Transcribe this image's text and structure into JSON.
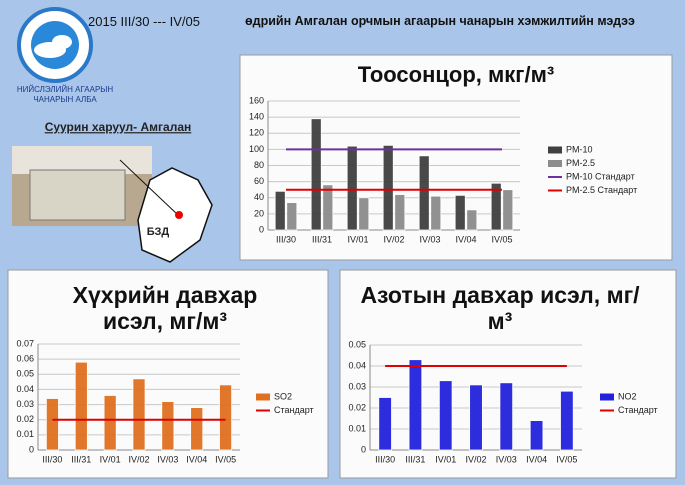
{
  "header": {
    "period": "2015   III/30   ---  IV/05",
    "title": "өдрийн Амгалан орчмын агаарын чанарын хэмжилтийн мэдээ"
  },
  "logo": {
    "line1": "НИЙСЛЭЛИЙН АГААРЫН",
    "line2": "ЧАНАРЫН АЛБА"
  },
  "station": "Суурин харуул- Амгалан",
  "map_label": "БЗД",
  "chart_data": [
    {
      "type": "bar",
      "title": "Тоосонцор, мкг/м³",
      "categories": [
        "III/30",
        "III/31",
        "IV/01",
        "IV/02",
        "IV/03",
        "IV/04",
        "IV/05"
      ],
      "series": [
        {
          "name": "PM-10",
          "color": "#404040",
          "type": "bar",
          "values": [
            48,
            138,
            104,
            105,
            92,
            43,
            58
          ]
        },
        {
          "name": "PM-2.5",
          "color": "#8c8c8c",
          "type": "bar",
          "values": [
            34,
            56,
            40,
            44,
            42,
            25,
            50
          ]
        },
        {
          "name": "PM-10 Стандарт",
          "color": "#7030a0",
          "type": "line",
          "values": [
            100,
            100,
            100,
            100,
            100,
            100,
            100
          ]
        },
        {
          "name": "PM-2.5 Стандарт",
          "color": "#e00000",
          "type": "line",
          "values": [
            50,
            50,
            50,
            50,
            50,
            50,
            50
          ]
        }
      ],
      "ylim": [
        0,
        160
      ],
      "yticks": [
        0,
        20,
        40,
        60,
        80,
        100,
        120,
        140,
        160
      ],
      "grid": true
    },
    {
      "type": "bar",
      "title": "Хүхрийн давхар исэл, мг/м³",
      "categories": [
        "III/30",
        "III/31",
        "IV/01",
        "IV/02",
        "IV/03",
        "IV/04",
        "IV/05"
      ],
      "series": [
        {
          "name": "SO2",
          "color": "#e07020",
          "type": "bar",
          "values": [
            0.034,
            0.058,
            0.036,
            0.047,
            0.032,
            0.028,
            0.043
          ]
        },
        {
          "name": "Стандарт",
          "color": "#e00000",
          "type": "line",
          "values": [
            0.02,
            0.02,
            0.02,
            0.02,
            0.02,
            0.02,
            0.02
          ]
        }
      ],
      "ylim": [
        0,
        0.07
      ],
      "yticks": [
        0,
        0.01,
        0.02,
        0.03,
        0.04,
        0.05,
        0.06,
        0.07
      ],
      "grid": true
    },
    {
      "type": "bar",
      "title": "Азотын давхар исэл, мг/м³",
      "categories": [
        "III/30",
        "III/31",
        "IV/01",
        "IV/02",
        "IV/03",
        "IV/04",
        "IV/05"
      ],
      "series": [
        {
          "name": "NO2",
          "color": "#2222dd",
          "type": "bar",
          "values": [
            0.025,
            0.043,
            0.033,
            0.031,
            0.032,
            0.014,
            0.028
          ]
        },
        {
          "name": "Стандарт",
          "color": "#e00000",
          "type": "line",
          "values": [
            0.04,
            0.04,
            0.04,
            0.04,
            0.04,
            0.04,
            0.04
          ]
        }
      ],
      "ylim": [
        0,
        0.05
      ],
      "yticks": [
        0,
        0.01,
        0.02,
        0.03,
        0.04,
        0.05
      ],
      "grid": true
    }
  ]
}
